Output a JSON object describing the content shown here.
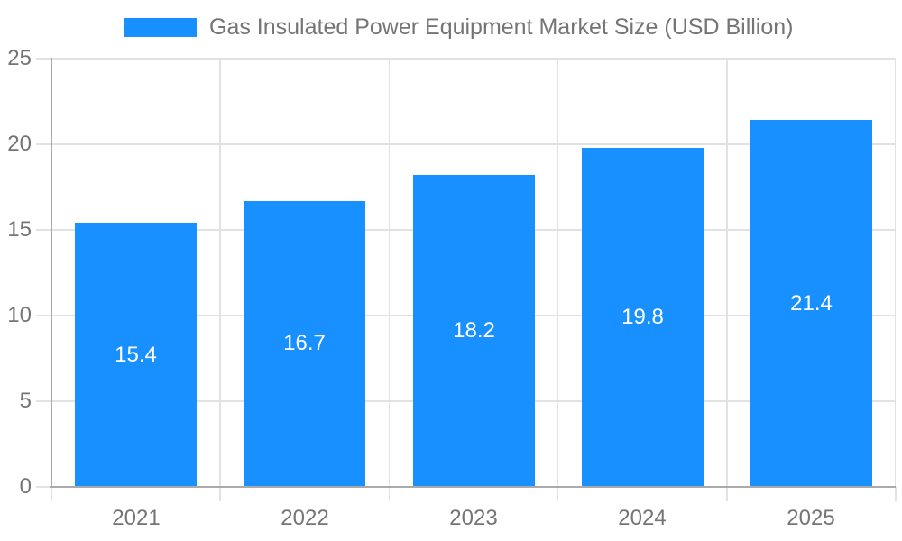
{
  "title": "Gas Insulated Power Equipment Market Size (USD Billion)",
  "legend": {
    "label": "Gas Insulated Power Equipment Market Size (USD Billion)"
  },
  "chart_data": {
    "type": "bar",
    "categories": [
      "2021",
      "2022",
      "2023",
      "2024",
      "2025"
    ],
    "values": [
      15.4,
      16.7,
      18.2,
      19.8,
      21.4
    ],
    "bar_labels": [
      "15.4",
      "16.7",
      "18.2",
      "19.8",
      "21.4"
    ],
    "title": "Gas Insulated Power Equipment Market Size (USD Billion)",
    "xlabel": "",
    "ylabel": "",
    "ylim": [
      0,
      25
    ],
    "ytick_step": 5,
    "ytick_labels": [
      "0",
      "5",
      "10",
      "15",
      "20",
      "25"
    ],
    "grid": true,
    "legend_position": "top"
  },
  "colors": {
    "bar": "#1890ff",
    "grid": "#e2e2e2",
    "axis": "#aaaaaa",
    "tick_text": "#757575",
    "title_text": "#757575",
    "bar_label_text": "#ffffff"
  }
}
